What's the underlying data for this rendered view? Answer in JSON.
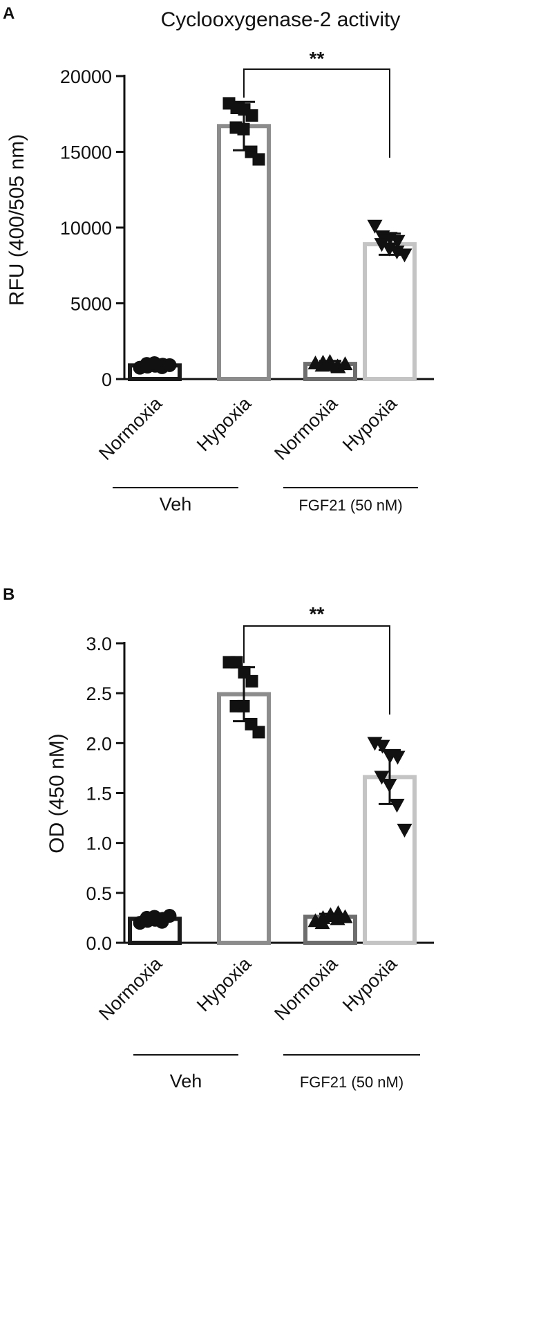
{
  "chart_data": [
    {
      "panel_label": "A",
      "type": "bar",
      "title": "Cyclooxygenase-2 activity",
      "ylabel": "RFU (400/505 nm)",
      "ylim": [
        0,
        20000
      ],
      "yticks": [
        0,
        5000,
        10000,
        15000,
        20000
      ],
      "categories": [
        "Normoxia",
        "Hypoxia",
        "Normoxia",
        "Hypoxia"
      ],
      "groups": [
        {
          "label": "Veh",
          "categories": [
            0,
            1
          ]
        },
        {
          "label": "FGF21 (50 nM)",
          "categories": [
            2,
            3
          ]
        }
      ],
      "bar_colors": [
        "#1a1a1a",
        "#8c8c8c",
        "#6e6e6e",
        "#c4c4c4"
      ],
      "markers": [
        "circle",
        "square",
        "triangle",
        "triangle-down"
      ],
      "values": [
        900,
        16700,
        1000,
        8900
      ],
      "errors": [
        150,
        1600,
        200,
        700
      ],
      "points": [
        [
          750,
          820,
          880,
          950,
          1000,
          1050,
          780,
          920
        ],
        [
          18200,
          17900,
          17800,
          17400,
          16600,
          16500,
          15000,
          14500
        ],
        [
          1050,
          1100,
          950,
          800,
          900,
          1150,
          850,
          1000
        ],
        [
          10100,
          9400,
          9300,
          9100,
          8900,
          8600,
          8400,
          8200
        ]
      ],
      "significance": {
        "label": "**",
        "from": 1,
        "to": 3
      }
    },
    {
      "panel_label": "B",
      "type": "bar",
      "ylabel": "OD (450 nM)",
      "ylim": [
        0,
        3
      ],
      "yticks": [
        "0.0",
        "0.5",
        "1.0",
        "1.5",
        "2.0",
        "2.5",
        "3.0"
      ],
      "categories": [
        "Normoxia",
        "Hypoxia",
        "Normoxia",
        "Hypoxia"
      ],
      "groups": [
        {
          "label": "Veh",
          "categories": [
            0,
            1
          ]
        },
        {
          "label": "FGF21 (50 nM)",
          "categories": [
            2,
            3
          ]
        }
      ],
      "bar_colors": [
        "#1a1a1a",
        "#8c8c8c",
        "#6e6e6e",
        "#c4c4c4"
      ],
      "markers": [
        "circle",
        "square",
        "triangle",
        "triangle-down"
      ],
      "values": [
        0.24,
        2.49,
        0.26,
        1.66
      ],
      "errors": [
        0.03,
        0.27,
        0.03,
        0.27
      ],
      "points": [
        [
          0.2,
          0.22,
          0.23,
          0.24,
          0.25,
          0.26,
          0.21,
          0.27
        ],
        [
          2.81,
          2.81,
          2.71,
          2.62,
          2.37,
          2.37,
          2.19,
          2.11
        ],
        [
          0.22,
          0.25,
          0.28,
          0.3,
          0.2,
          0.27,
          0.24,
          0.26
        ],
        [
          2.0,
          1.97,
          1.87,
          1.86,
          1.66,
          1.58,
          1.38,
          1.13
        ]
      ],
      "significance": {
        "label": "**",
        "from": 1,
        "to": 3
      }
    }
  ]
}
